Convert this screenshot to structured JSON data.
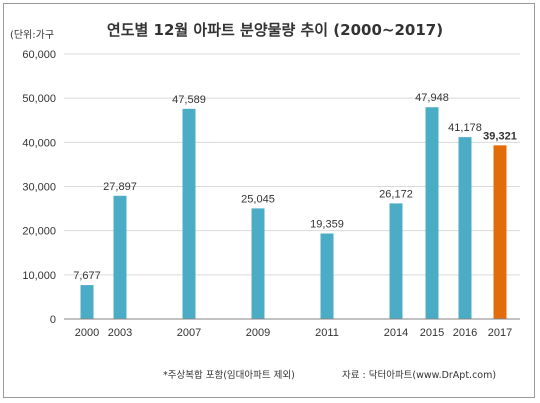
{
  "chart_data": {
    "type": "bar",
    "title": "연도별  12월 아파트 분양물량 추이 (2000~2017)",
    "unit_label": "(단위:가구",
    "categories": [
      "2000",
      "2003",
      "2007",
      "2009",
      "2011",
      "2014",
      "2015",
      "2016",
      "2017"
    ],
    "values": [
      7677,
      27897,
      47589,
      25045,
      19359,
      26172,
      47948,
      41178,
      39321
    ],
    "value_labels": [
      "7,677",
      "27,897",
      "47,589",
      "25,045",
      "19,359",
      "26,172",
      "47,948",
      "41,178",
      "39,321"
    ],
    "highlight_index": 8,
    "ylim": [
      0,
      60000
    ],
    "yticks": [
      0,
      10000,
      20000,
      30000,
      40000,
      50000,
      60000
    ],
    "ytick_labels": [
      "0",
      "10,000",
      "20,000",
      "30,000",
      "40,000",
      "50,000",
      "60,000"
    ],
    "grid": true,
    "colors": {
      "bar": "#4bacc6",
      "highlight": "#e36c0a",
      "grid": "#d9d9d9",
      "axis": "#868686"
    },
    "footnote": "*주상복합 포함(임대아파트 제외)",
    "source": "자료 : 닥터아파트(www.DrApt.com)"
  }
}
